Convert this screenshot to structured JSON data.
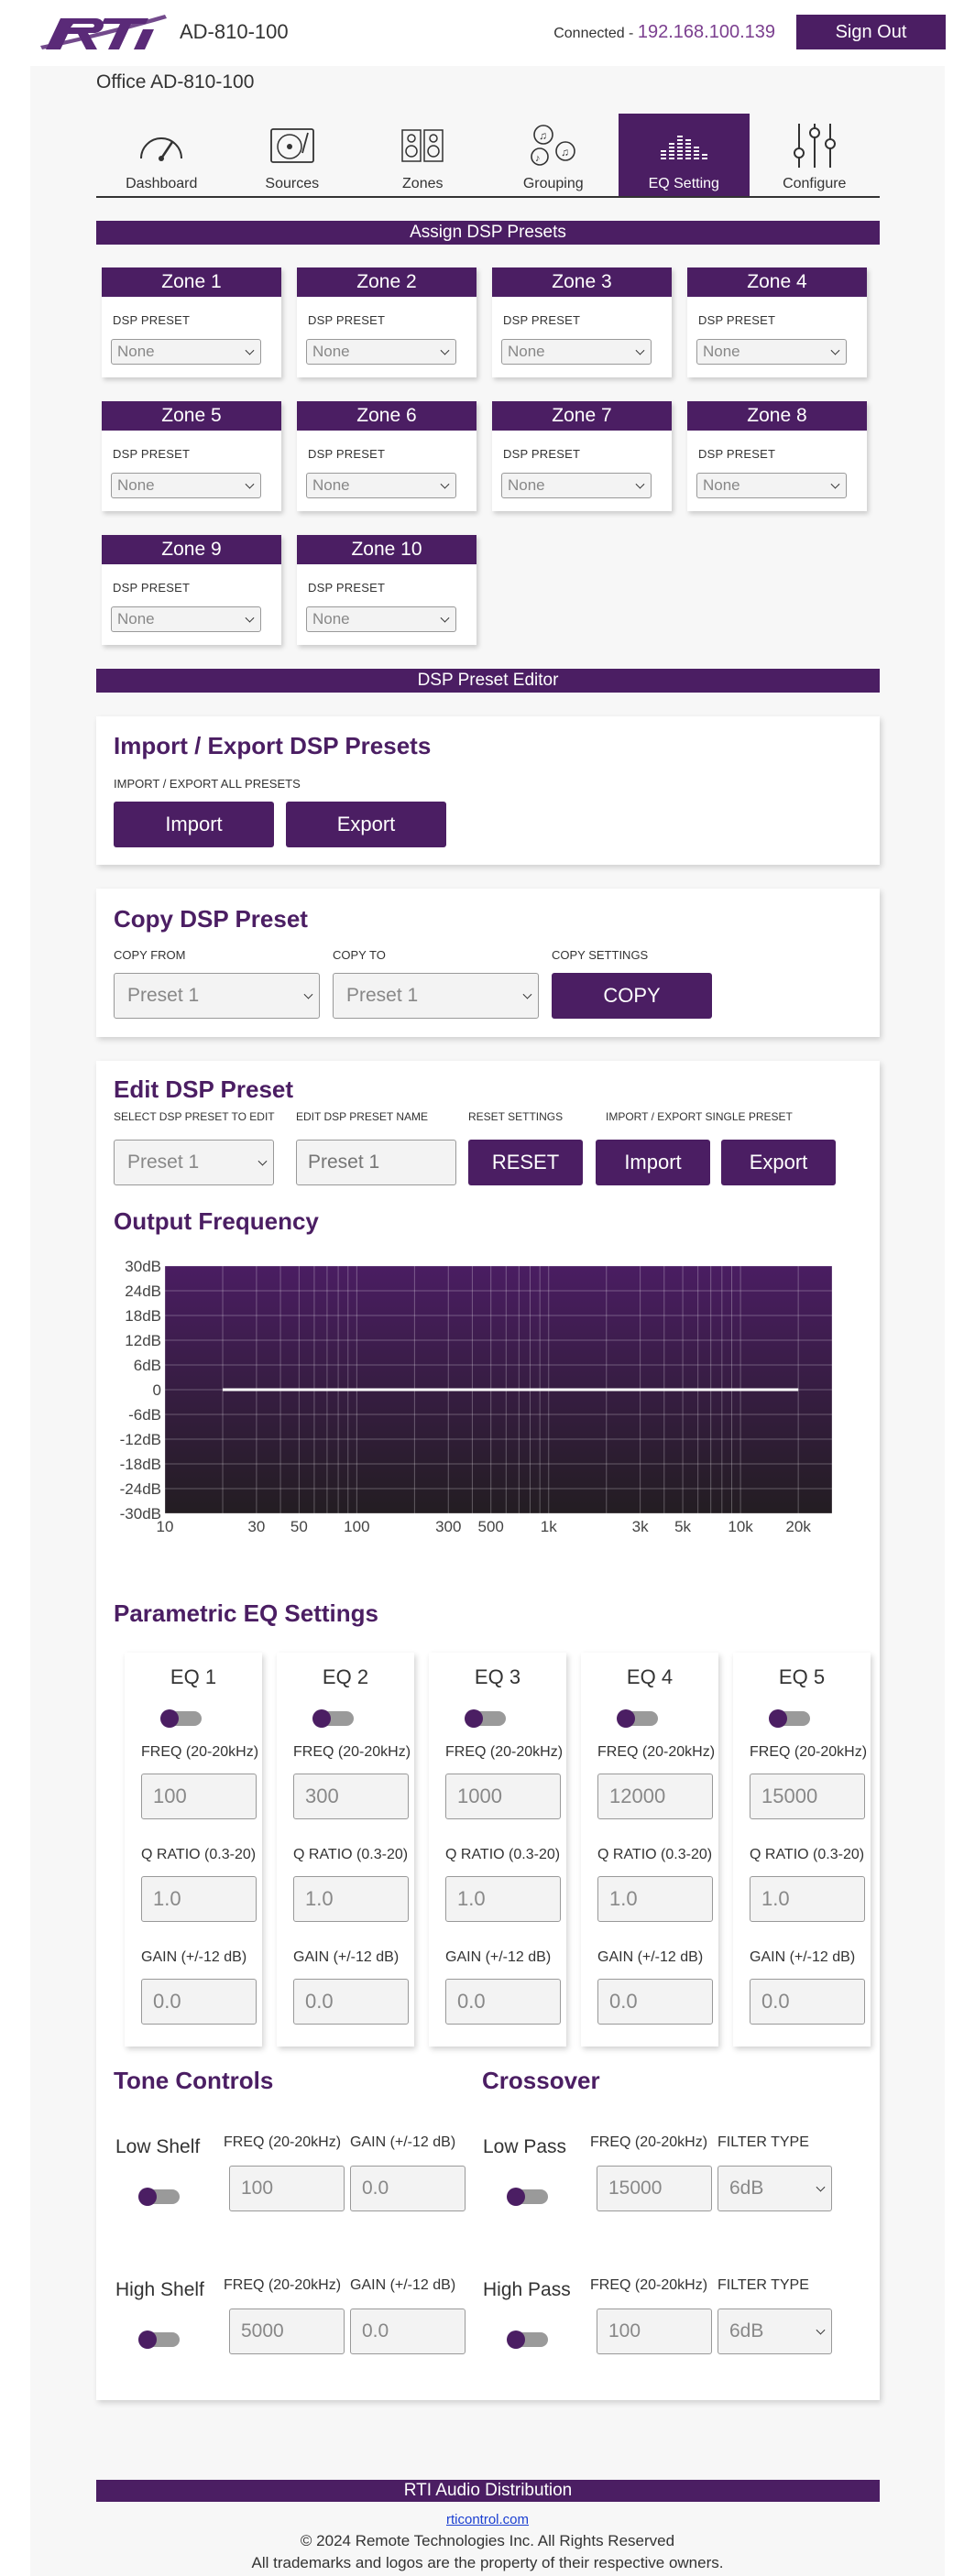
{
  "header": {
    "device_name": "AD-810-100",
    "connected_label": "Connected -",
    "ip": "192.168.100.139",
    "sign_out": "Sign Out",
    "brand_color": "#4b1e63"
  },
  "location": "Office AD-810-100",
  "nav": {
    "tabs": [
      {
        "label": "Dashboard",
        "icon": "gauge-icon"
      },
      {
        "label": "Sources",
        "icon": "turntable-icon"
      },
      {
        "label": "Zones",
        "icon": "speakers-icon"
      },
      {
        "label": "Grouping",
        "icon": "music-notes-icon"
      },
      {
        "label": "EQ Setting",
        "icon": "equalizer-icon",
        "active": true
      },
      {
        "label": "Configure",
        "icon": "sliders-icon"
      }
    ]
  },
  "assign": {
    "title": "Assign DSP Presets",
    "preset_label": "DSP PRESET",
    "zones": [
      {
        "name": "Zone 1",
        "value": "None"
      },
      {
        "name": "Zone 2",
        "value": "None"
      },
      {
        "name": "Zone 3",
        "value": "None"
      },
      {
        "name": "Zone 4",
        "value": "None"
      },
      {
        "name": "Zone 5",
        "value": "None"
      },
      {
        "name": "Zone 6",
        "value": "None"
      },
      {
        "name": "Zone 7",
        "value": "None"
      },
      {
        "name": "Zone 8",
        "value": "None"
      },
      {
        "name": "Zone 9",
        "value": "None"
      },
      {
        "name": "Zone 10",
        "value": "None"
      }
    ]
  },
  "editor_title": "DSP Preset Editor",
  "import_export": {
    "title": "Import / Export DSP Presets",
    "label": "IMPORT / EXPORT ALL PRESETS",
    "import": "Import",
    "export": "Export"
  },
  "copy": {
    "title": "Copy DSP Preset",
    "from_label": "COPY FROM",
    "from_value": "Preset 1",
    "to_label": "COPY TO",
    "to_value": "Preset 1",
    "settings_label": "COPY SETTINGS",
    "button": "COPY"
  },
  "edit": {
    "title": "Edit DSP Preset",
    "select_label": "SELECT DSP PRESET TO EDIT",
    "select_value": "Preset 1",
    "name_label": "EDIT DSP PRESET NAME",
    "name_placeholder": "Preset 1",
    "reset_label": "RESET SETTINGS",
    "reset": "RESET",
    "single_label": "IMPORT / EXPORT SINGLE PRESET",
    "import": "Import",
    "export": "Export"
  },
  "output_title": "Output Frequency",
  "chart_data": {
    "type": "line",
    "y_ticks": [
      "30dB",
      "24dB",
      "18dB",
      "12dB",
      "6dB",
      "0",
      "-6dB",
      "-12dB",
      "-18dB",
      "-24dB",
      "-30dB"
    ],
    "x_ticks": [
      "10",
      "30",
      "50",
      "100",
      "300",
      "500",
      "1k",
      "3k",
      "5k",
      "10k",
      "20k"
    ],
    "x_tick_values": [
      10,
      30,
      50,
      100,
      300,
      500,
      1000,
      3000,
      5000,
      10000,
      20000
    ],
    "xlim": [
      10,
      30000
    ],
    "ylim": [
      -30,
      30
    ],
    "x_scale": "log",
    "grid": true,
    "series": [
      {
        "x": [
          20,
          20000
        ],
        "y": [
          0,
          0
        ]
      }
    ],
    "bg_top": "#4a1d62",
    "bg_bottom": "#231d22",
    "line_color": "#ffffff"
  },
  "peq": {
    "title": "Parametric EQ Settings",
    "freq_label": "FREQ (20-20kHz)",
    "q_label": "Q RATIO (0.3-20)",
    "gain_label": "GAIN (+/-12 dB)",
    "bands": [
      {
        "name": "EQ 1",
        "freq": "100",
        "q": "1.0",
        "gain": "0.0"
      },
      {
        "name": "EQ 2",
        "freq": "300",
        "q": "1.0",
        "gain": "0.0"
      },
      {
        "name": "EQ 3",
        "freq": "1000",
        "q": "1.0",
        "gain": "0.0"
      },
      {
        "name": "EQ 4",
        "freq": "12000",
        "q": "1.0",
        "gain": "0.0"
      },
      {
        "name": "EQ 5",
        "freq": "15000",
        "q": "1.0",
        "gain": "0.0"
      }
    ]
  },
  "tone": {
    "title": "Tone Controls",
    "freq_label": "FREQ (20-20kHz)",
    "gain_label": "GAIN (+/-12 dB)",
    "low_shelf": {
      "label": "Low Shelf",
      "freq": "100",
      "gain": "0.0"
    },
    "high_shelf": {
      "label": "High Shelf",
      "freq": "5000",
      "gain": "0.0"
    }
  },
  "crossover": {
    "title": "Crossover",
    "freq_label": "FREQ (20-20kHz)",
    "filter_label": "FILTER TYPE",
    "low_pass": {
      "label": "Low Pass",
      "freq": "15000",
      "filter": "6dB"
    },
    "high_pass": {
      "label": "High Pass",
      "freq": "100",
      "filter": "6dB"
    }
  },
  "footer": {
    "title": "RTI Audio Distribution",
    "link": "rticontrol.com",
    "copyright": "© 2024 Remote Technologies Inc. All Rights Reserved",
    "trademarks": "All trademarks and logos are the property of their respective owners."
  }
}
